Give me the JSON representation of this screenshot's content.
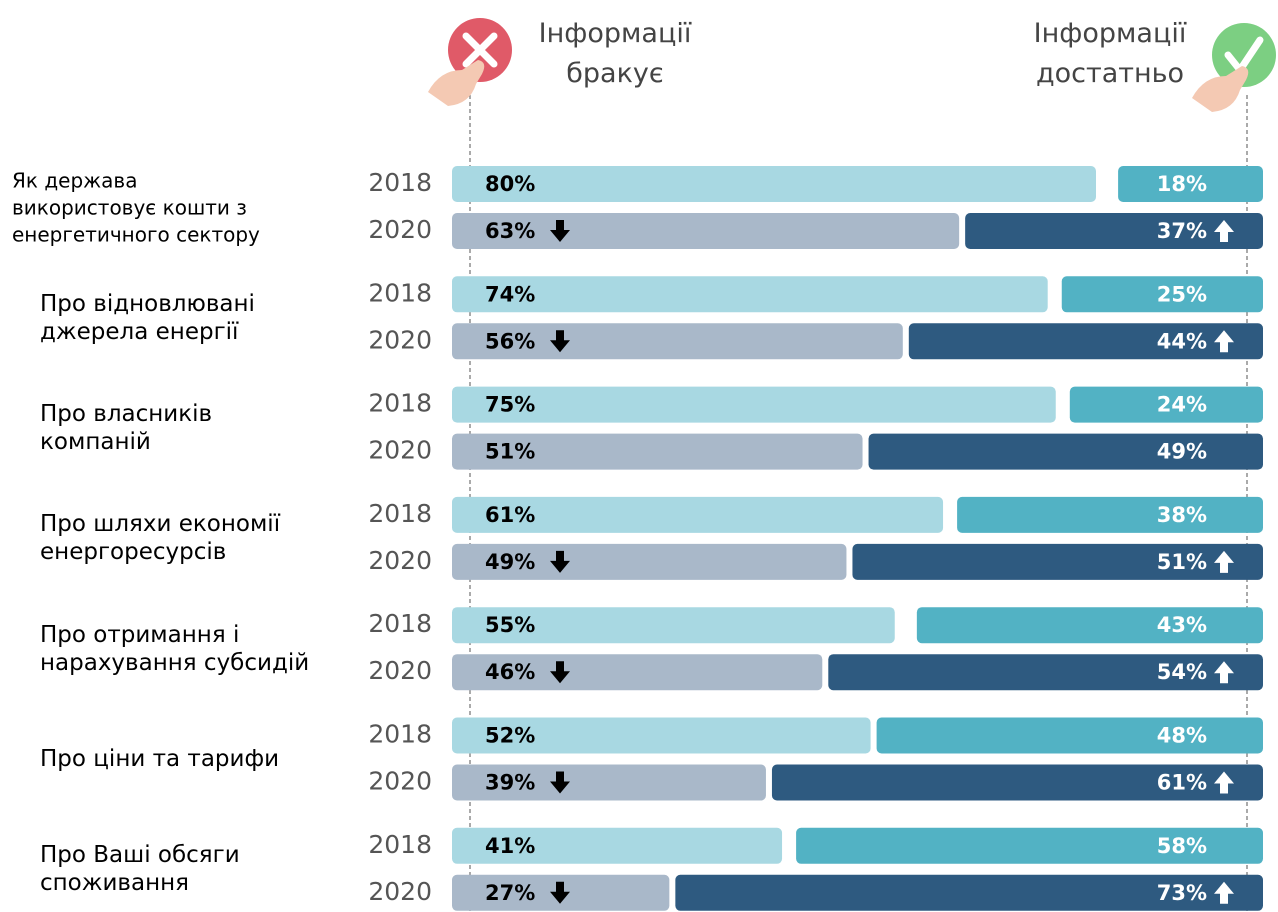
{
  "chart_data": {
    "type": "split-bar",
    "headers": [
      "Інформації\nбракує",
      "Інформації\nдостатньо"
    ],
    "categories": [
      "Як держава\nвикористовує кошти з\nенергетичного сектору",
      "Про відновлювані\nджерела енергії",
      "Про власників\nкомпаній",
      "Про шляхи економії\nенергоресурсів",
      "Про отримання і\nнарахування субсидій",
      "Про ціни та тарифи",
      "Про Ваші обсяги\nспоживання"
    ],
    "years": [
      "2018",
      "2020"
    ],
    "series": [
      {
        "name": "Інформації бракує",
        "colors": [
          "#a8d8e2",
          "#a9b8c9"
        ],
        "text_color": "#000000",
        "values": [
          [
            80,
            63
          ],
          [
            74,
            56
          ],
          [
            75,
            51
          ],
          [
            61,
            49
          ],
          [
            55,
            46
          ],
          [
            52,
            39
          ],
          [
            41,
            27
          ]
        ],
        "value_labels": [
          [
            "80%",
            "63%"
          ],
          [
            "74%",
            "56%"
          ],
          [
            "75%",
            "51%"
          ],
          [
            "61%",
            "49%"
          ],
          [
            "55%",
            "46%"
          ],
          [
            "52%",
            "39%"
          ],
          [
            "41%",
            "27%"
          ]
        ]
      },
      {
        "name": "Інформації достатньо",
        "colors": [
          "#52b2c4",
          "#2e5a80"
        ],
        "text_color": "#ffffff",
        "values": [
          [
            18,
            37
          ],
          [
            25,
            44
          ],
          [
            24,
            49
          ],
          [
            38,
            51
          ],
          [
            43,
            54
          ],
          [
            48,
            61
          ],
          [
            58,
            73
          ]
        ],
        "value_labels": [
          [
            "18%",
            "37%"
          ],
          [
            "25%",
            "44%"
          ],
          [
            "24%",
            "49%"
          ],
          [
            "38%",
            "51%"
          ],
          [
            "43%",
            "54%"
          ],
          [
            "48%",
            "61%"
          ],
          [
            "58%",
            "73%"
          ]
        ]
      }
    ],
    "change_arrows": [
      true,
      true,
      false,
      true,
      true,
      true,
      true
    ]
  }
}
